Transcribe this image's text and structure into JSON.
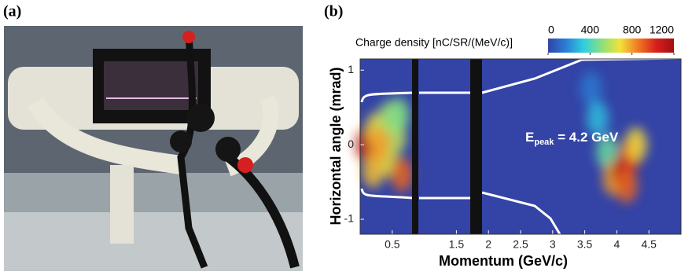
{
  "panels": [
    "(a)",
    "(b)"
  ],
  "chart_data": {
    "type": "heatmap",
    "x_label": "Momentum (GeV/c)",
    "y_label": "Horizontal angle (mrad)",
    "xlim": [
      0,
      5
    ],
    "xticks": [
      0.5,
      1.5,
      2,
      2.5,
      3,
      3.5,
      4,
      4.5
    ],
    "ylim": [
      -1.2,
      1.15
    ],
    "yticks": [
      -1,
      0,
      1
    ],
    "colorbar": {
      "title": "Charge density [nC/SR/(MeV/c)]",
      "lim": [
        0,
        1200
      ],
      "ticks": [
        0,
        400,
        800,
        1200
      ],
      "colormap": [
        "#3343a6",
        "#2a7fd6",
        "#2fd0e0",
        "#8de07a",
        "#f2e23a",
        "#f07a22",
        "#d8201c",
        "#a01010"
      ]
    },
    "annotation": {
      "base": "E",
      "sub": "peak",
      "rest": " = 4.2 GeV"
    },
    "spots": {
      "x": [
        0.1,
        0.25,
        0.4,
        0.55,
        0.65,
        0.2,
        0.45,
        0.6,
        0.3,
        3.6,
        3.7,
        3.85,
        3.95,
        4.1,
        4.2,
        4.3,
        4.15
      ],
      "y": [
        0,
        0.2,
        -0.2,
        0.1,
        -0.4,
        -0.35,
        0.35,
        0.4,
        0.0,
        0.75,
        0.35,
        -0.1,
        -0.45,
        -0.35,
        -0.15,
        0.0,
        -0.55
      ],
      "values": [
        1100,
        700,
        650,
        600,
        900,
        750,
        550,
        500,
        800,
        150,
        300,
        450,
        800,
        1200,
        1000,
        700,
        900
      ]
    }
  }
}
